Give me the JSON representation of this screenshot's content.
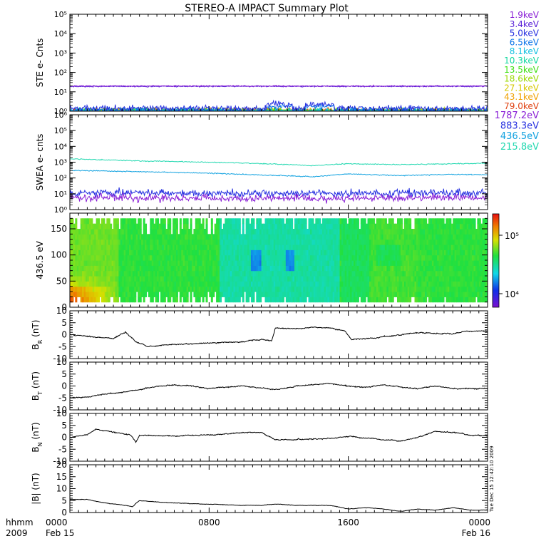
{
  "title": "STEREO-A IMPACT Summary Plot",
  "side_stamp": "Tue Dec 15 12:42:10 2009",
  "time_axis": {
    "hours_range": [
      0,
      24
    ],
    "ticks": [
      {
        "hour": 0,
        "label": "0000",
        "date": "Feb 15"
      },
      {
        "hour": 8,
        "label": "0800",
        "date": ""
      },
      {
        "hour": 16,
        "label": "1600",
        "date": ""
      },
      {
        "hour": 24,
        "label": "0000",
        "date": "Feb 16"
      }
    ],
    "left_label_1": "hhmm",
    "left_label_2": "2009"
  },
  "colors": {
    "ste": [
      "#8a1fd6",
      "#5a22d8",
      "#2630e0",
      "#0a74e8",
      "#12c0e0",
      "#12d8a0",
      "#3ee010",
      "#9ad800",
      "#d6c800",
      "#f0a000",
      "#e04010"
    ],
    "swea": [
      "#8a1fd6",
      "#2630e0",
      "#12a2e0",
      "#22d8b0"
    ]
  },
  "chart_data": [
    {
      "type": "line",
      "id": "ste",
      "ylabel": "STE e- Cnts",
      "yscale": "log",
      "ylim_exp": [
        0,
        5
      ],
      "ytick_labels": [
        "10⁰",
        "10¹",
        "10²",
        "10³",
        "10⁴",
        "10⁵"
      ],
      "legend_placement": "right",
      "series": [
        {
          "name": "1.9keV",
          "level": 20
        },
        {
          "name": "3.4keV",
          "level": 19
        },
        {
          "name": "5.0keV",
          "level": 1.4
        },
        {
          "name": "6.5keV",
          "level": 1.1
        },
        {
          "name": "8.1keV",
          "level": 1.0
        },
        {
          "name": "10.3keV",
          "level": 1.0
        },
        {
          "name": "13.5keV",
          "level": 1.0
        },
        {
          "name": "18.6keV",
          "level": 1.0
        },
        {
          "name": "27.1keV",
          "level": 1.0
        },
        {
          "name": "43.1keV",
          "level": 1.0
        },
        {
          "name": "79.0keV",
          "level": 1.0
        }
      ]
    },
    {
      "type": "line",
      "id": "swea",
      "ylabel": "SWEA e- cnts",
      "yscale": "log",
      "ylim_exp": [
        0,
        6
      ],
      "ytick_labels": [
        "10⁰",
        "10¹",
        "10²",
        "10³",
        "10⁴",
        "10⁵",
        "10⁶"
      ],
      "legend_placement": "right",
      "series": [
        {
          "name": "1787.2eV",
          "levels": [
            [
              0,
              6
            ],
            [
              12,
              5
            ],
            [
              24,
              6
            ]
          ]
        },
        {
          "name": "883.3eV",
          "levels": [
            [
              0,
              12
            ],
            [
              12,
              10
            ],
            [
              24,
              12
            ]
          ]
        },
        {
          "name": "436.5eV",
          "levels": [
            [
              0,
              300
            ],
            [
              4,
              250
            ],
            [
              8,
              200
            ],
            [
              10.5,
              160
            ],
            [
              14,
              120
            ],
            [
              16,
              180
            ],
            [
              19,
              140
            ],
            [
              22,
              170
            ],
            [
              24,
              160
            ]
          ]
        },
        {
          "name": "215.8eV",
          "levels": [
            [
              0,
              1600
            ],
            [
              4,
              1200
            ],
            [
              8,
              1000
            ],
            [
              10.5,
              850
            ],
            [
              14,
              600
            ],
            [
              16,
              800
            ],
            [
              19,
              700
            ],
            [
              22,
              800
            ],
            [
              24,
              850
            ]
          ]
        }
      ]
    },
    {
      "type": "heatmap",
      "id": "pad",
      "ylabel": "436.5 eV",
      "ylim": [
        0,
        180
      ],
      "yticks": [
        0,
        50,
        100,
        150
      ],
      "colorbar": {
        "tick_labels": [
          "10⁴",
          "10⁵"
        ]
      }
    },
    {
      "type": "line",
      "id": "br",
      "ylabel": "B",
      "ylabel_sub": "R",
      "ylabel_unit": " (nT)",
      "ylim": [
        -10,
        10
      ],
      "yticks": [
        -10,
        -5,
        0,
        5,
        10
      ],
      "points": [
        [
          0,
          0
        ],
        [
          1.5,
          -1
        ],
        [
          2.5,
          -1.5
        ],
        [
          3.2,
          1
        ],
        [
          3.8,
          -3
        ],
        [
          4.5,
          -5
        ],
        [
          6,
          -4
        ],
        [
          8,
          -3.5
        ],
        [
          10,
          -3
        ],
        [
          11,
          -2
        ],
        [
          11.6,
          -2.5
        ],
        [
          11.8,
          3
        ],
        [
          13,
          2.5
        ],
        [
          14,
          3
        ],
        [
          15,
          2.8
        ],
        [
          15.8,
          1.5
        ],
        [
          16.2,
          -2
        ],
        [
          17.5,
          -1.5
        ],
        [
          18.5,
          -0.5
        ],
        [
          20,
          1
        ],
        [
          21,
          0.5
        ],
        [
          22,
          0.5
        ],
        [
          23,
          1.5
        ],
        [
          24,
          1.5
        ]
      ]
    },
    {
      "type": "line",
      "id": "bt",
      "ylabel": "B",
      "ylabel_sub": "T",
      "ylabel_unit": " (nT)",
      "ylim": [
        -10,
        10
      ],
      "yticks": [
        -10,
        -5,
        0,
        5,
        10
      ],
      "points": [
        [
          0,
          -5
        ],
        [
          1,
          -4.5
        ],
        [
          2,
          -3.5
        ],
        [
          3,
          -2.5
        ],
        [
          4,
          -1.5
        ],
        [
          5,
          0
        ],
        [
          6,
          0.5
        ],
        [
          7,
          0
        ],
        [
          8,
          -1
        ],
        [
          9,
          -0.5
        ],
        [
          10,
          0
        ],
        [
          11,
          -1
        ],
        [
          12,
          -1.5
        ],
        [
          13,
          0
        ],
        [
          14,
          0.5
        ],
        [
          15,
          1
        ],
        [
          16,
          0
        ],
        [
          17,
          -0.5
        ],
        [
          18,
          0.5
        ],
        [
          19,
          -0.5
        ],
        [
          20,
          -1
        ],
        [
          21,
          0
        ],
        [
          22,
          -1
        ],
        [
          23,
          -1
        ],
        [
          24,
          -1
        ]
      ]
    },
    {
      "type": "line",
      "id": "bn",
      "ylabel": "B",
      "ylabel_sub": "N",
      "ylabel_unit": " (nT)",
      "ylim": [
        -10,
        10
      ],
      "yticks": [
        -10,
        -5,
        0,
        5,
        10
      ],
      "points": [
        [
          0,
          0
        ],
        [
          1,
          1
        ],
        [
          1.5,
          3.5
        ],
        [
          2.5,
          2
        ],
        [
          3.5,
          1
        ],
        [
          3.8,
          -2
        ],
        [
          4,
          1
        ],
        [
          6,
          0.5
        ],
        [
          8,
          1
        ],
        [
          10,
          2
        ],
        [
          11,
          2
        ],
        [
          11.8,
          -1
        ],
        [
          13,
          -1
        ],
        [
          15,
          -0.5
        ],
        [
          16,
          0.5
        ],
        [
          17,
          -0.5
        ],
        [
          18,
          -1
        ],
        [
          19,
          -1.5
        ],
        [
          20,
          0
        ],
        [
          21,
          2.5
        ],
        [
          22,
          2
        ],
        [
          23,
          1
        ],
        [
          24,
          0.5
        ]
      ]
    },
    {
      "type": "line",
      "id": "bmag",
      "ylabel": "|B| (nT)",
      "ylim": [
        0,
        20
      ],
      "yticks": [
        0,
        5,
        10,
        15,
        20
      ],
      "points": [
        [
          0,
          5.5
        ],
        [
          1,
          5.5
        ],
        [
          2,
          4
        ],
        [
          3,
          3.2
        ],
        [
          3.6,
          2.5
        ],
        [
          4,
          5
        ],
        [
          5,
          4.5
        ],
        [
          6,
          4
        ],
        [
          8,
          3.5
        ],
        [
          10,
          3
        ],
        [
          11,
          3
        ],
        [
          11.8,
          3.5
        ],
        [
          13,
          3
        ],
        [
          15,
          3
        ],
        [
          16,
          1.5
        ],
        [
          17,
          2
        ],
        [
          18,
          1.5
        ],
        [
          19,
          0.5
        ],
        [
          20,
          1.5
        ],
        [
          21,
          1
        ],
        [
          22,
          2
        ],
        [
          23,
          1
        ],
        [
          24,
          1
        ]
      ]
    }
  ]
}
